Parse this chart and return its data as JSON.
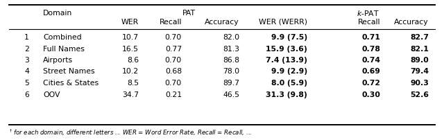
{
  "rows": [
    [
      "1",
      "Combined",
      "10.7",
      "0.70",
      "82.0",
      "9.9 (7.5)",
      "0.71",
      "82.7"
    ],
    [
      "2",
      "Full Names",
      "16.5",
      "0.77",
      "81.3",
      "15.9 (3.6)",
      "0.78",
      "82.1"
    ],
    [
      "3",
      "Airports",
      "8.6",
      "0.70",
      "86.8",
      "7.4 (13.9)",
      "0.74",
      "89.0"
    ],
    [
      "4",
      "Street Names",
      "10.2",
      "0.68",
      "78.0",
      "9.9 (2.9)",
      "0.69",
      "79.4"
    ],
    [
      "5",
      "Cities & States",
      "8.5",
      "0.70",
      "89.7",
      "8.0 (5.9)",
      "0.72",
      "90.3"
    ],
    [
      "6",
      "OOV",
      "34.7",
      "0.21",
      "46.5",
      "31.3 (9.8)",
      "0.30",
      "52.6"
    ]
  ],
  "bold_cols": [
    5,
    6,
    7
  ],
  "background_color": "#ffffff",
  "line_color": "#000000",
  "text_color": "#000000",
  "fontsize": 7.8,
  "note_fontsize": 6.2
}
